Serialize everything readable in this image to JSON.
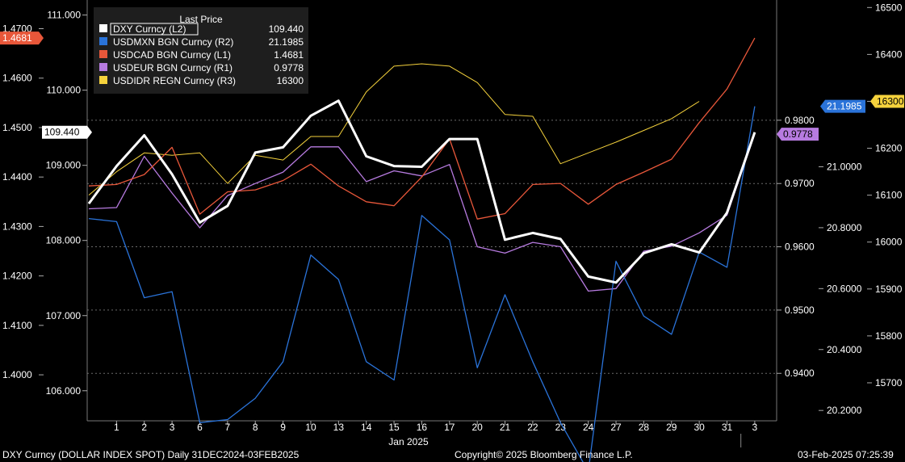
{
  "footer": {
    "left": "DXY Curncy (DOLLAR INDEX SPOT)  Daily 31DEC2024-03FEB2025",
    "center": "Copyright© 2025 Bloomberg Finance L.P.",
    "right": "03-Feb-2025 07:25:39"
  },
  "chart_data": {
    "type": "line",
    "x_ticks": [
      "1",
      "2",
      "3",
      "6",
      "7",
      "8",
      "9",
      "10",
      "13",
      "14",
      "15",
      "16",
      "17",
      "20",
      "21",
      "22",
      "23",
      "24",
      "27",
      "28",
      "29",
      "30",
      "31",
      "3"
    ],
    "x_month_label": "Jan 2025",
    "grid": "dotted horizontal",
    "legend": {
      "title": "Last Price",
      "placement": "top-left",
      "entries": [
        {
          "label": "DXY Curncy  (L2)",
          "value": "109.440",
          "color": "#ffffff"
        },
        {
          "label": "USDMXN BGN Curncy  (R2)",
          "value": "21.1985",
          "color": "#2a73d9"
        },
        {
          "label": "USDCAD BGN Curncy  (L1)",
          "value": "1.4681",
          "color": "#e8573a"
        },
        {
          "label": "USDEUR BGN Curncy  (R1)",
          "value": "0.9778",
          "color": "#b77be0"
        },
        {
          "label": "USDIDR REGN Curncy  (R3)",
          "value": "16300",
          "color": "#f5d23c"
        }
      ]
    },
    "axes": {
      "L1": {
        "ticks": [
          "1.4700",
          "1.4600",
          "1.4500",
          "1.4400",
          "1.4300",
          "1.4200",
          "1.4100",
          "1.4000"
        ],
        "range": [
          1.3907,
          1.4758
        ]
      },
      "L2": {
        "ticks": [
          "111.000",
          "110.000",
          "109.000",
          "108.000",
          "107.000",
          "106.000"
        ],
        "range": [
          105.6,
          111.2
        ]
      },
      "R1": {
        "ticks": [
          "0.9800",
          "0.9700",
          "0.9600",
          "0.9500",
          "0.9400"
        ],
        "range": [
          0.9325,
          0.999
        ]
      },
      "R2": {
        "ticks": [
          "21.0000",
          "20.8000",
          "20.6000",
          "20.4000",
          "20.2000"
        ],
        "range": [
          20.166,
          21.5475
        ]
      },
      "R3": {
        "ticks": [
          "16500",
          "16400",
          "16300",
          "16200",
          "16100",
          "16000",
          "15900",
          "15800",
          "15700"
        ],
        "range": [
          15619,
          16516
        ]
      }
    },
    "last_value_tags": [
      {
        "axis": "L1",
        "value": "1.4681",
        "color": "#e8573a",
        "text_color": "#ffffff"
      },
      {
        "axis": "L2",
        "value": "109.440",
        "color": "#ffffff",
        "text_color": "#000000"
      },
      {
        "axis": "R2",
        "value": "21.1985",
        "color": "#2a73d9",
        "text_color": "#ffffff"
      },
      {
        "axis": "R1",
        "value": "0.9778",
        "color": "#b77be0",
        "text_color": "#000000"
      },
      {
        "axis": "R3",
        "value": "16300",
        "color": "#f5d23c",
        "text_color": "#000000"
      }
    ],
    "series": [
      {
        "name": "DXY Curncy",
        "axis": "L2",
        "color": "#ffffff",
        "width": 3,
        "values": [
          108.49,
          108.99,
          109.4,
          108.88,
          108.24,
          108.46,
          109.17,
          109.24,
          109.66,
          109.86,
          109.12,
          108.99,
          108.98,
          109.35,
          109.35,
          108.01,
          108.1,
          108.02,
          107.52,
          107.44,
          107.83,
          107.95,
          107.84,
          108.37,
          109.44
        ]
      },
      {
        "name": "USDMXN BGN Curncy",
        "axis": "R2",
        "color": "#2a73d9",
        "width": 1.3,
        "values": [
          20.83,
          20.82,
          20.57,
          20.59,
          20.16,
          20.17,
          20.24,
          20.36,
          20.71,
          20.63,
          20.36,
          20.3,
          20.84,
          20.76,
          20.34,
          20.58,
          20.36,
          20.16,
          20.0,
          20.69,
          20.51,
          20.45,
          20.72,
          20.67,
          21.1985
        ]
      },
      {
        "name": "USDCAD BGN Curncy",
        "axis": "L1",
        "color": "#e8573a",
        "width": 1.3,
        "values": [
          1.4382,
          1.4385,
          1.4405,
          1.446,
          1.4325,
          1.437,
          1.4374,
          1.4393,
          1.4426,
          1.4382,
          1.435,
          1.4342,
          1.44,
          1.4477,
          1.4315,
          1.4326,
          1.4385,
          1.4387,
          1.4345,
          1.4385,
          1.441,
          1.4436,
          1.451,
          1.4578,
          1.4681
        ]
      },
      {
        "name": "USDEUR BGN Curncy",
        "axis": "R1",
        "color": "#b77be0",
        "width": 1.3,
        "values": [
          0.966,
          0.9662,
          0.9743,
          0.9685,
          0.963,
          0.9681,
          0.97,
          0.9718,
          0.9758,
          0.9758,
          0.9703,
          0.972,
          0.9712,
          0.973,
          0.96,
          0.959,
          0.9607,
          0.96,
          0.953,
          0.9534,
          0.9593,
          0.9601,
          0.9622,
          0.965,
          0.9778
        ]
      },
      {
        "name": "USDIDR REGN Curncy",
        "axis": "R3",
        "color": "#f5d23c",
        "width": 1,
        "values": [
          16100,
          16150,
          16190,
          16185,
          16190,
          16125,
          16185,
          16175,
          16225,
          16225,
          16320,
          16375,
          16380,
          16375,
          16340,
          16272,
          16268,
          16167,
          16190,
          16213,
          16238,
          16263,
          16300
        ]
      }
    ]
  }
}
